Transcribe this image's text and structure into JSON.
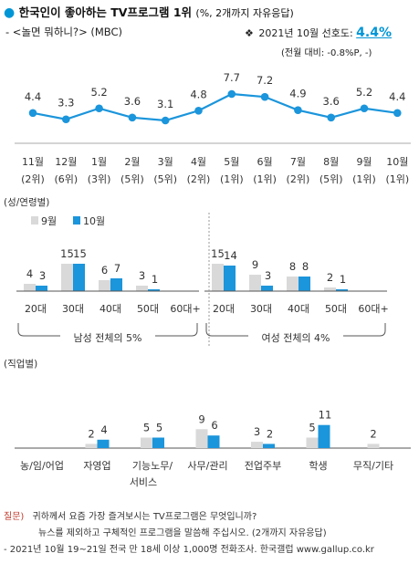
{
  "header": {
    "title_main": "한국인이 좋아하는 TV프로그램 1위",
    "title_sub": "(%, 2개까지 자유응답)",
    "subtitle": "- <놀면 뭐하니?> (MBC)",
    "pref_label": "2021년 10월 선호도:",
    "pref_value": "4.4%",
    "pref_diff": "(전월 대비: -0.8%P, -)"
  },
  "chart_data": [
    {
      "type": "line",
      "title": "",
      "categories": [
        "11월",
        "12월",
        "1월",
        "2월",
        "3월",
        "4월",
        "5월",
        "6월",
        "7월",
        "8월",
        "9월",
        "10월"
      ],
      "ranks": [
        "(2위)",
        "(6위)",
        "(3위)",
        "(5위)",
        "(5위)",
        "(2위)",
        "(1위)",
        "(1위)",
        "(2위)",
        "(5위)",
        "(1위)",
        "(1위)"
      ],
      "values": [
        4.4,
        3.3,
        5.2,
        3.6,
        3.1,
        4.8,
        7.7,
        7.2,
        4.9,
        3.6,
        5.2,
        4.4
      ],
      "value_labels": [
        "4.4",
        "3.3",
        "5.2",
        "3.6",
        "3.1",
        "4.8",
        "7.7",
        "7.2",
        "4.9",
        "3.6",
        "5.2",
        "4.4"
      ],
      "color": "#1b95db"
    },
    {
      "type": "bar",
      "section_label": "(성/연령별)",
      "series": [
        {
          "name": "9월",
          "color": "#d9d9d9"
        },
        {
          "name": "10월",
          "color": "#1b95db"
        }
      ],
      "groups": [
        {
          "label": "남성 전체의 5%",
          "categories": [
            "20대",
            "30대",
            "40대",
            "50대",
            "60대+"
          ],
          "values_9": [
            4,
            15,
            6,
            3,
            null
          ],
          "values_10": [
            3,
            15,
            7,
            1,
            null
          ],
          "labels_9": [
            "4",
            "15",
            "6",
            "3",
            ""
          ],
          "labels_10": [
            "3",
            "15",
            "7",
            "1",
            ""
          ]
        },
        {
          "label": "여성 전체의 4%",
          "categories": [
            "20대",
            "30대",
            "40대",
            "50대",
            "60대+"
          ],
          "values_9": [
            15,
            9,
            8,
            2,
            null
          ],
          "values_10": [
            14,
            3,
            8,
            1,
            null
          ],
          "labels_9": [
            "15",
            "9",
            "8",
            "2",
            ""
          ],
          "labels_10": [
            "14",
            "3",
            "8",
            "1",
            ""
          ]
        }
      ]
    },
    {
      "type": "bar",
      "section_label": "(직업별)",
      "categories": [
        "농/임/어업",
        "자영업",
        "기능노무/\n서비스",
        "사무/관리",
        "전업주부",
        "학생",
        "무직/기타"
      ],
      "values_9": [
        null,
        2,
        5,
        9,
        3,
        5,
        2
      ],
      "values_10": [
        null,
        4,
        5,
        6,
        2,
        11,
        null
      ],
      "labels_9": [
        "",
        "2",
        "5",
        "9",
        "3",
        "5",
        "2"
      ],
      "labels_10": [
        "",
        "4",
        "5",
        "6",
        "2",
        "11",
        ""
      ]
    }
  ],
  "notes": {
    "q_label": "질문)",
    "q_line1": "귀하께서 요즘 가장 즐겨보시는 TV프로그램은 무엇입니까?",
    "q_line2": "뉴스를 제외하고 구체적인 프로그램을 말씀해 주십시오. (2개까지 자유응답)",
    "source": "- 2021년 10월 19~21일 전국 만 18세 이상 1,000명 전화조사. 한국갤럽 www.gallup.co.kr"
  }
}
